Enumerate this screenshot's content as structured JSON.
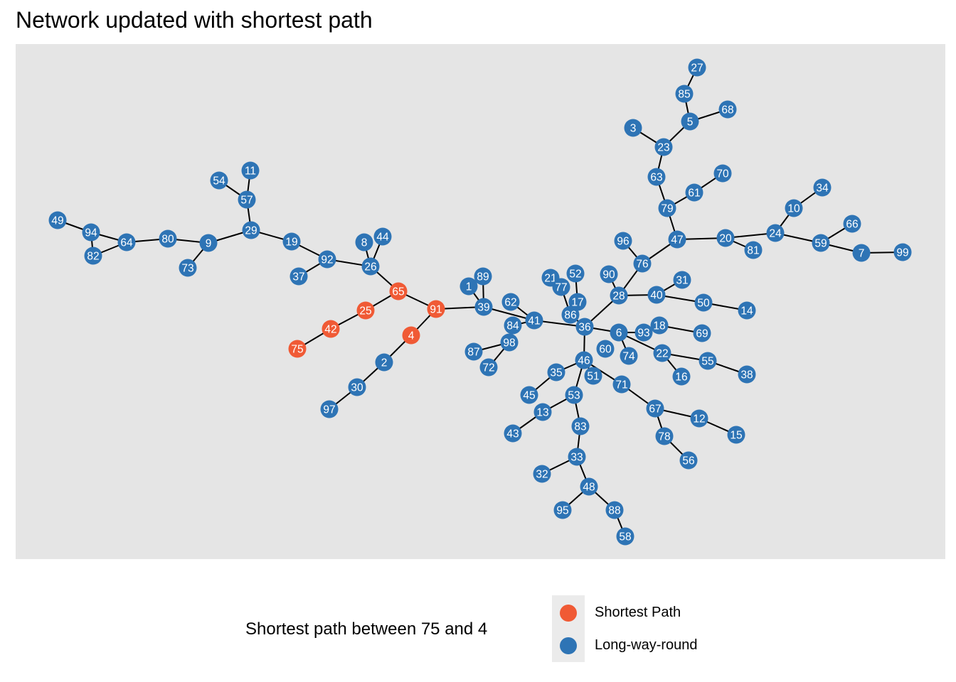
{
  "title": "Network updated with shortest path",
  "legend": {
    "title": "Shortest path between 75 and 4",
    "items": [
      {
        "label": "Shortest Path",
        "color": "#f05a35"
      },
      {
        "label": "Long-way-round",
        "color": "#2e74b5"
      }
    ]
  },
  "colors": {
    "panel": "#e5e5e5",
    "edge": "#000000",
    "label": "#ffffff"
  },
  "shortest_path": [
    "75",
    "42",
    "25",
    "65",
    "91",
    "4"
  ],
  "nodes": [
    "1",
    "2",
    "3",
    "4",
    "5",
    "6",
    "7",
    "8",
    "9",
    "10",
    "11",
    "12",
    "13",
    "14",
    "15",
    "16",
    "17",
    "18",
    "19",
    "20",
    "21",
    "22",
    "23",
    "24",
    "25",
    "26",
    "27",
    "28",
    "29",
    "30",
    "31",
    "32",
    "33",
    "34",
    "35",
    "36",
    "37",
    "38",
    "39",
    "40",
    "41",
    "42",
    "43",
    "44",
    "45",
    "46",
    "47",
    "48",
    "49",
    "50",
    "51",
    "52",
    "53",
    "54",
    "55",
    "56",
    "57",
    "58",
    "59",
    "60",
    "61",
    "62",
    "63",
    "64",
    "65",
    "66",
    "67",
    "68",
    "69",
    "70",
    "71",
    "72",
    "73",
    "74",
    "75",
    "76",
    "77",
    "78",
    "79",
    "80",
    "81",
    "82",
    "83",
    "84",
    "85",
    "86",
    "87",
    "88",
    "89",
    "90",
    "91",
    "92",
    "93",
    "94",
    "95",
    "96",
    "97",
    "98",
    "99"
  ],
  "edges": [
    [
      "75",
      "42"
    ],
    [
      "42",
      "25"
    ],
    [
      "25",
      "65"
    ],
    [
      "65",
      "91"
    ],
    [
      "91",
      "4"
    ],
    [
      "65",
      "26"
    ],
    [
      "4",
      "2"
    ],
    [
      "2",
      "30"
    ],
    [
      "30",
      "97"
    ],
    [
      "91",
      "39"
    ],
    [
      "39",
      "1"
    ],
    [
      "39",
      "89"
    ],
    [
      "39",
      "41"
    ],
    [
      "41",
      "62"
    ],
    [
      "41",
      "84"
    ],
    [
      "84",
      "98"
    ],
    [
      "98",
      "87"
    ],
    [
      "98",
      "72"
    ],
    [
      "41",
      "36"
    ],
    [
      "26",
      "8"
    ],
    [
      "26",
      "44"
    ],
    [
      "26",
      "92"
    ],
    [
      "92",
      "37"
    ],
    [
      "92",
      "19"
    ],
    [
      "19",
      "29"
    ],
    [
      "29",
      "57"
    ],
    [
      "57",
      "54"
    ],
    [
      "57",
      "11"
    ],
    [
      "29",
      "9"
    ],
    [
      "9",
      "73"
    ],
    [
      "9",
      "80"
    ],
    [
      "80",
      "64"
    ],
    [
      "64",
      "94"
    ],
    [
      "64",
      "82"
    ],
    [
      "94",
      "82"
    ],
    [
      "94",
      "49"
    ],
    [
      "36",
      "86"
    ],
    [
      "86",
      "17"
    ],
    [
      "86",
      "77"
    ],
    [
      "77",
      "21"
    ],
    [
      "17",
      "52"
    ],
    [
      "36",
      "28"
    ],
    [
      "28",
      "90"
    ],
    [
      "28",
      "76"
    ],
    [
      "76",
      "96"
    ],
    [
      "76",
      "47"
    ],
    [
      "28",
      "40"
    ],
    [
      "40",
      "31"
    ],
    [
      "40",
      "50"
    ],
    [
      "50",
      "14"
    ],
    [
      "47",
      "79"
    ],
    [
      "79",
      "63"
    ],
    [
      "63",
      "23"
    ],
    [
      "23",
      "3"
    ],
    [
      "23",
      "5"
    ],
    [
      "5",
      "85"
    ],
    [
      "85",
      "27"
    ],
    [
      "5",
      "68"
    ],
    [
      "79",
      "61"
    ],
    [
      "61",
      "70"
    ],
    [
      "47",
      "20"
    ],
    [
      "20",
      "81"
    ],
    [
      "20",
      "24"
    ],
    [
      "24",
      "10"
    ],
    [
      "10",
      "34"
    ],
    [
      "24",
      "59"
    ],
    [
      "59",
      "66"
    ],
    [
      "59",
      "7"
    ],
    [
      "7",
      "99"
    ],
    [
      "36",
      "6"
    ],
    [
      "6",
      "93"
    ],
    [
      "93",
      "18"
    ],
    [
      "18",
      "69"
    ],
    [
      "6",
      "74"
    ],
    [
      "6",
      "22"
    ],
    [
      "22",
      "16"
    ],
    [
      "22",
      "55"
    ],
    [
      "55",
      "38"
    ],
    [
      "36",
      "46"
    ],
    [
      "46",
      "51"
    ],
    [
      "46",
      "35"
    ],
    [
      "35",
      "45"
    ],
    [
      "46",
      "53"
    ],
    [
      "53",
      "13"
    ],
    [
      "13",
      "43"
    ],
    [
      "53",
      "83"
    ],
    [
      "83",
      "33"
    ],
    [
      "33",
      "32"
    ],
    [
      "33",
      "48"
    ],
    [
      "48",
      "95"
    ],
    [
      "48",
      "88"
    ],
    [
      "88",
      "58"
    ],
    [
      "46",
      "71"
    ],
    [
      "71",
      "67"
    ],
    [
      "67",
      "78"
    ],
    [
      "78",
      "56"
    ],
    [
      "67",
      "12"
    ],
    [
      "12",
      "15"
    ]
  ]
}
